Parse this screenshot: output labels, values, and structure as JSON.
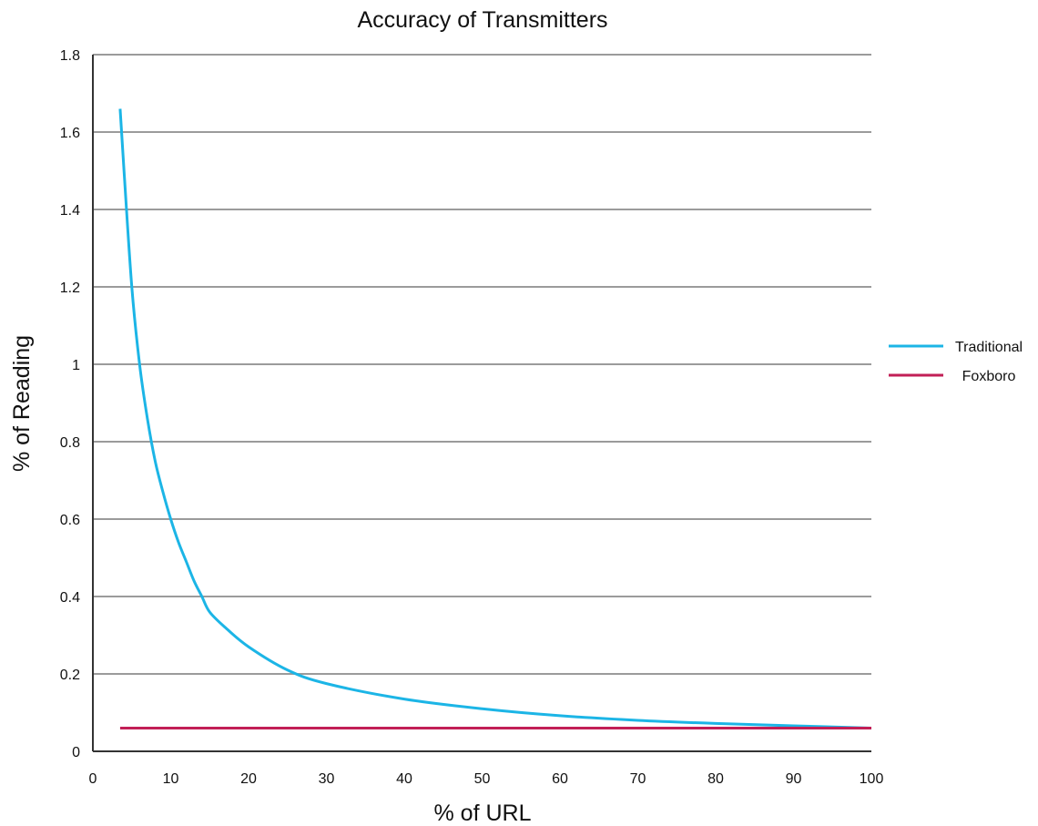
{
  "chart_data": {
    "type": "line",
    "title": "Accuracy of Transmitters",
    "xlabel": "% of URL",
    "ylabel": "% of Reading",
    "xlim": [
      0,
      100
    ],
    "ylim": [
      0,
      1.8
    ],
    "grid": true,
    "legend_position": "right",
    "x_ticks": [
      "0",
      "10",
      "20",
      "30",
      "40",
      "50",
      "60",
      "70",
      "80",
      "90",
      "100"
    ],
    "y_ticks": [
      "0",
      "0.2",
      "0.4",
      "0.6",
      "0.8",
      "1",
      "1.2",
      "1.4",
      "1.6",
      "1.8"
    ],
    "series": [
      {
        "name": "Traditional",
        "color": "#1cb5e6",
        "x": [
          3.5,
          4,
          5,
          6,
          7,
          8,
          9,
          10,
          11,
          12,
          13,
          14,
          15,
          17,
          20,
          25,
          30,
          40,
          50,
          60,
          70,
          80,
          90,
          100
        ],
        "y": [
          1.66,
          1.5,
          1.2,
          1.0,
          0.86,
          0.75,
          0.67,
          0.6,
          0.54,
          0.49,
          0.44,
          0.4,
          0.36,
          0.32,
          0.27,
          0.21,
          0.175,
          0.135,
          0.11,
          0.092,
          0.08,
          0.072,
          0.066,
          0.06
        ]
      },
      {
        "name": "Foxboro",
        "color": "#c21f56",
        "x": [
          3.5,
          100
        ],
        "y": [
          0.06,
          0.06
        ]
      }
    ]
  },
  "colors": {
    "gridline": "#9b9b9b",
    "axis": "#333333"
  }
}
